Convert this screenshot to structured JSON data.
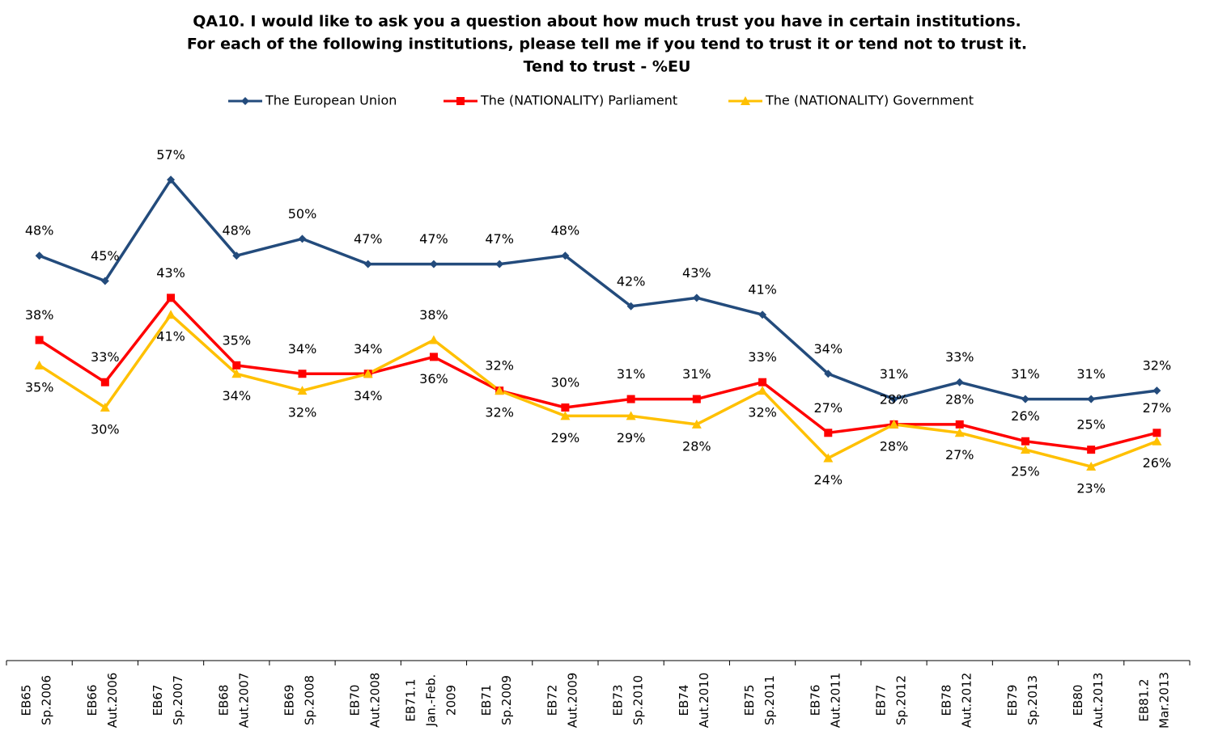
{
  "chart_data": {
    "type": "line",
    "title": [
      "QA10. I would like to ask you a question about how much trust you have in certain institutions.",
      "For each of the following institutions, please tell me if you tend to trust it or tend not to trust it.",
      "Tend to trust - %EU"
    ],
    "categories": [
      [
        "EB65",
        "Sp.2006"
      ],
      [
        "EB66",
        "Aut.2006"
      ],
      [
        "EB67",
        "Sp.2007"
      ],
      [
        "EB68",
        "Aut.2007"
      ],
      [
        "EB69",
        "Sp.2008"
      ],
      [
        "EB70",
        "Aut.2008"
      ],
      [
        "EB71.1",
        "Jan.-Feb.",
        "2009"
      ],
      [
        "EB71",
        "Sp.2009"
      ],
      [
        "EB72",
        "Aut.2009"
      ],
      [
        "EB73",
        "Sp.2010"
      ],
      [
        "EB74",
        "Aut.2010"
      ],
      [
        "EB75",
        "Sp.2011"
      ],
      [
        "EB76",
        "Aut.2011"
      ],
      [
        "EB77",
        "Sp.2012"
      ],
      [
        "EB78",
        "Aut.2012"
      ],
      [
        "EB79",
        "Sp.2013"
      ],
      [
        "EB80",
        "Aut.2013"
      ],
      [
        "EB81.2",
        "Mar.2013"
      ]
    ],
    "series": [
      {
        "name": "The European Union",
        "color": "#234b7c",
        "marker": "diamond",
        "values": [
          48,
          45,
          57,
          48,
          50,
          47,
          47,
          47,
          48,
          42,
          43,
          41,
          34,
          31,
          33,
          31,
          31,
          32
        ],
        "value_labels": [
          "48%",
          "45%",
          "57%",
          "48%",
          "50%",
          "47%",
          "47%",
          "47%",
          "48%",
          "42%",
          "43%",
          "41%",
          "34%",
          "31%",
          "33%",
          "31%",
          "31%",
          "32%"
        ]
      },
      {
        "name": "The (NATIONALITY) Parliament",
        "color": "#ff0000",
        "marker": "square",
        "values": [
          38,
          33,
          43,
          35,
          34,
          34,
          36,
          32,
          30,
          31,
          31,
          33,
          27,
          28,
          28,
          26,
          25,
          27
        ],
        "value_labels": [
          "38%",
          "33%",
          "43%",
          "35%",
          "34%",
          "34%",
          "36%",
          "32%",
          "30%",
          "31%",
          "31%",
          "33%",
          "27%",
          "28%",
          "28%",
          "26%",
          "25%",
          "27%"
        ]
      },
      {
        "name": "The (NATIONALITY) Government",
        "color": "#ffc000",
        "marker": "triangle",
        "values": [
          35,
          30,
          41,
          34,
          32,
          34,
          38,
          32,
          29,
          29,
          28,
          32,
          24,
          28,
          27,
          25,
          23,
          26
        ],
        "value_labels": [
          "35%",
          "30%",
          "41%",
          "34%",
          "32%",
          "34%",
          "38%",
          "32%",
          "29%",
          "29%",
          "28%",
          "32%",
          "24%",
          "28%",
          "27%",
          "25%",
          "23%",
          "26%"
        ]
      }
    ],
    "ylim": [
      0,
      60
    ]
  }
}
